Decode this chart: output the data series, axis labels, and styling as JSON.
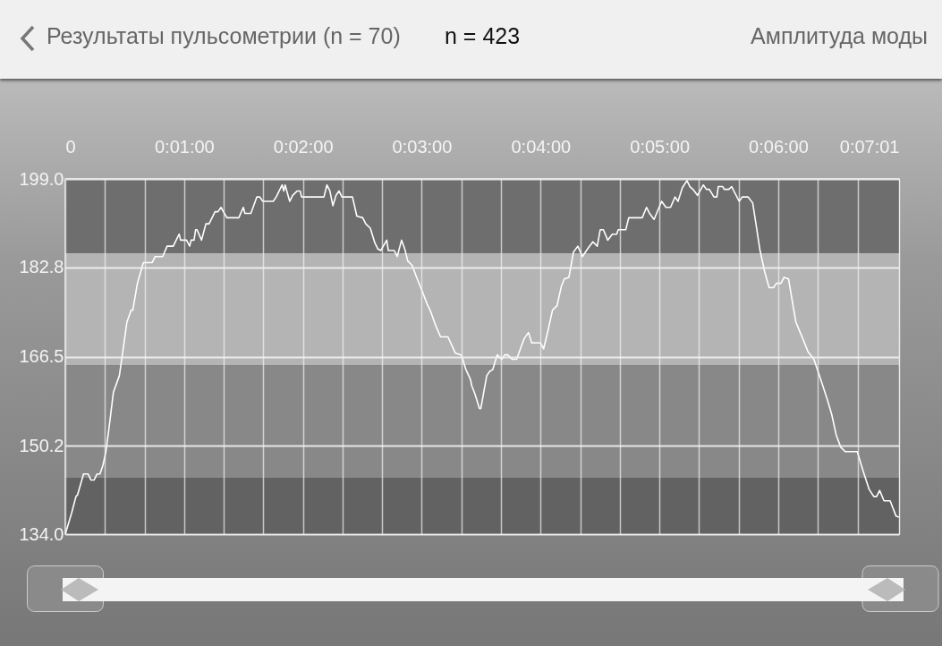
{
  "chart_data": {
    "type": "line",
    "title": "Результаты пульсометрии (n = 70)",
    "subtitle": "n = 423",
    "annotations": [
      "Амплитуда моды"
    ],
    "x": [
      0,
      3.2,
      5.4,
      6.2,
      9.2,
      11.5,
      13,
      14.5,
      16,
      17.5,
      19,
      20.5,
      22,
      24.3,
      27.3,
      28.8,
      31.1,
      33.3,
      34.1,
      36.4,
      39.4,
      43.9,
      45.4,
      49.2,
      51.4,
      54.5,
      56,
      57.5,
      58.2,
      61.2,
      62.8,
      63.5,
      65,
      65.8,
      66.5,
      68.8,
      71,
      72.6,
      75.6,
      77.1,
      78.6,
      81.6,
      87.6,
      89.9,
      90.7,
      93.7,
      96.7,
      98.2,
      99.7,
      105,
      106.5,
      108,
      109.5,
      110.3,
      111,
      113.3,
      114.8,
      117.1,
      118.6,
      119.3,
      130.6,
      132.1,
      133.6,
      135.1,
      136.7,
      138.2,
      139.7,
      145,
      147.2,
      150.2,
      151.7,
      154,
      156.3,
      157.8,
      159.3,
      162.3,
      163.1,
      166.1,
      167.6,
      169.8,
      171.4,
      172.9,
      175.1,
      177.4,
      180.4,
      182.7,
      184.2,
      187.2,
      189.5,
      193.2,
      197,
      200,
      202.3,
      204.5,
      205.3,
      206.8,
      209.1,
      209.8,
      212.8,
      214.3,
      215.8,
      218.1,
      220.4,
      221.9,
      223.4,
      225.7,
      227.9,
      231.7,
      233.9,
      235.5,
      240,
      241.5,
      243.7,
      246,
      248.3,
      250.5,
      252,
      254.3,
      256.6,
      258.8,
      261.1,
      264.1,
      266.4,
      268.6,
      270.1,
      271.7,
      273.9,
      276.2,
      278.4,
      279.2,
      283,
      284.5,
      288.2,
      291.3,
      293.5,
      295,
      297.3,
      301.1,
      303.3,
      305.6,
      307.9,
      309.4,
      311.6,
      313.9,
      315.4,
      316.9,
      319.2,
      322.2,
      323.7,
      325.2,
      327.5,
      329,
      329.7,
      332,
      332.7,
      335,
      336.5,
      338,
      340.3,
      341.8,
      344.8,
      347.1,
      348.6,
      350.8,
      353.1,
      355.4,
      357.6,
      359.1,
      361.4,
      362.9,
      365.2,
      368.9,
      372.7,
      375,
      378,
      381.8,
      384.8,
      387,
      389.3,
      391.6,
      393.8,
      399.9,
      402.9,
      405.9,
      408.2,
      409.7,
      411.2,
      413.4,
      416.5,
      419.5,
      421
    ],
    "series": [
      {
        "color": "#ffffff",
        "values": [
          134,
          137.9,
          140.9,
          141.2,
          145,
          145,
          143.9,
          143.9,
          145,
          145,
          146.6,
          149.1,
          153.2,
          160,
          163,
          166.8,
          172.8,
          175,
          175,
          179.9,
          183.7,
          183.7,
          184.8,
          184.8,
          186.7,
          186.7,
          187.8,
          188.9,
          187.8,
          187.8,
          186.7,
          187.8,
          187.8,
          189.7,
          189.7,
          187.8,
          190.8,
          190.8,
          193,
          193,
          193.8,
          191.9,
          191.9,
          193.8,
          192.7,
          192.7,
          195.7,
          195.7,
          194.9,
          194.9,
          195.7,
          196.8,
          197.9,
          196.8,
          197.9,
          194.9,
          196,
          196.8,
          196.8,
          195.7,
          195.7,
          197.9,
          196.8,
          194.1,
          196,
          196.8,
          195.7,
          195.7,
          192.2,
          191.9,
          190.8,
          190,
          187.3,
          186.2,
          185.9,
          187.8,
          185.9,
          185.9,
          184.8,
          187.8,
          186.2,
          184,
          183.2,
          181,
          178.3,
          176.1,
          175,
          172,
          170.1,
          170.1,
          167.1,
          166.8,
          164.1,
          162.4,
          161.1,
          159.7,
          157,
          157,
          163,
          163.8,
          164.1,
          166.8,
          166,
          166.8,
          166.8,
          166,
          166,
          169.8,
          170.9,
          169,
          169,
          167.9,
          171.2,
          175,
          175.8,
          179.4,
          180.7,
          181,
          185.6,
          186.7,
          184.8,
          186.4,
          187.5,
          186.7,
          189.7,
          189.7,
          187.8,
          188.9,
          188.9,
          189.7,
          189.7,
          191.9,
          191.9,
          191.9,
          193.8,
          192.7,
          191.6,
          194.9,
          193.8,
          193.8,
          195.7,
          194.9,
          197.4,
          198.7,
          197.6,
          197.1,
          196,
          197.9,
          197.1,
          197.1,
          195.7,
          195.7,
          197.6,
          197.6,
          197.1,
          197.1,
          197.6,
          196.5,
          194.9,
          195.7,
          195.7,
          194.6,
          191.1,
          185.9,
          182.1,
          179.1,
          179.1,
          179.9,
          179.9,
          181,
          180.7,
          172.8,
          169.5,
          167.4,
          166,
          161.9,
          158.6,
          155.9,
          152.1,
          149.9,
          149.1,
          149.1,
          145.5,
          142.2,
          140.9,
          140.9,
          142,
          140.1,
          140.1,
          137.3,
          137.1
        ]
      }
    ],
    "xlim": [
      0,
      421
    ],
    "ylim": [
      134,
      199
    ],
    "xticks": [
      {
        "value": 0,
        "label": "0"
      },
      {
        "value": 20,
        "label": null
      },
      {
        "value": 40,
        "label": null
      },
      {
        "value": 60,
        "label": "0:01:00"
      },
      {
        "value": 80,
        "label": null
      },
      {
        "value": 100,
        "label": null
      },
      {
        "value": 120,
        "label": "0:02:00"
      },
      {
        "value": 140,
        "label": null
      },
      {
        "value": 160,
        "label": null
      },
      {
        "value": 180,
        "label": "0:03:00"
      },
      {
        "value": 200,
        "label": null
      },
      {
        "value": 220,
        "label": null
      },
      {
        "value": 240,
        "label": "0:04:00"
      },
      {
        "value": 260,
        "label": null
      },
      {
        "value": 280,
        "label": null
      },
      {
        "value": 300,
        "label": "0:05:00"
      },
      {
        "value": 320,
        "label": null
      },
      {
        "value": 340,
        "label": null
      },
      {
        "value": 360,
        "label": "0:06:00"
      },
      {
        "value": 380,
        "label": null
      },
      {
        "value": 400,
        "label": null
      },
      {
        "value": 421,
        "label": "0:07:01"
      }
    ],
    "yticks": [
      {
        "value": 134,
        "label": "134.0"
      },
      150.2,
      166.5,
      182.8,
      {
        "value": 199,
        "label": "199.0"
      }
    ],
    "grid": true,
    "bands": [
      {
        "axis": "y",
        "from": 185.4,
        "to": 199,
        "color": "#6e6e6e"
      },
      {
        "axis": "y",
        "from": 164.9,
        "to": 185.4,
        "color": "#b4b4b4"
      },
      {
        "axis": "y",
        "from": 144.3,
        "to": 164.9,
        "color": "#888888"
      },
      {
        "axis": "y",
        "from": 134,
        "to": 144.3,
        "color": "#626262"
      }
    ]
  }
}
